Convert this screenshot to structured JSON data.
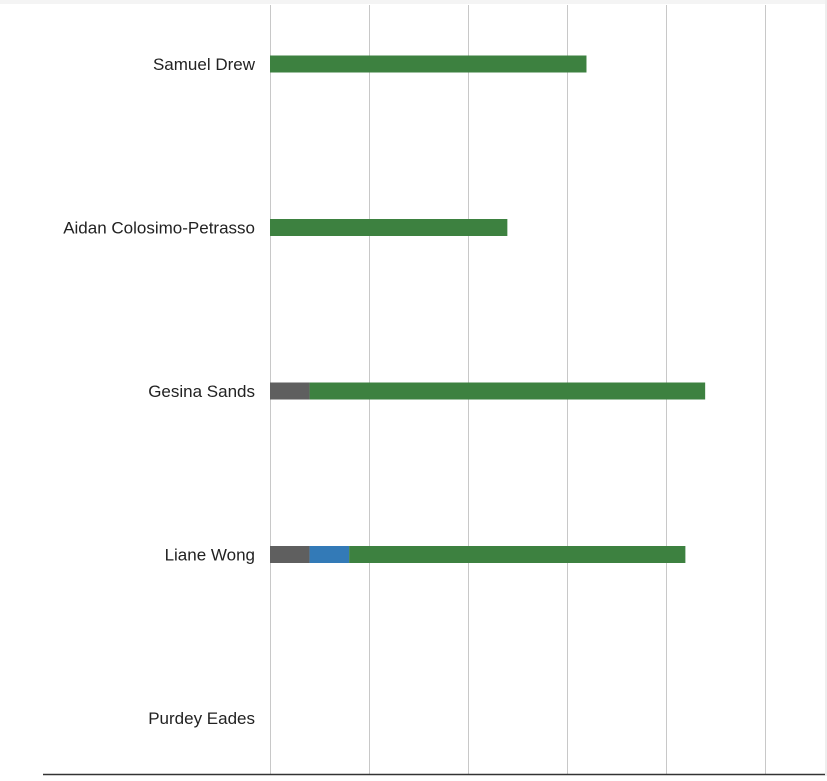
{
  "chart_data": {
    "type": "bar",
    "orientation": "horizontal",
    "stacked": true,
    "categories": [
      "Samuel Drew",
      "Aidan Colosimo-Petrasso",
      "Gesina Sands",
      "Liane Wong",
      "Purdey Eades"
    ],
    "series": [
      {
        "color": "#5f5f5f",
        "values": [
          0,
          0,
          0.4,
          0.4,
          0
        ]
      },
      {
        "color": "#337ab7",
        "values": [
          0,
          0,
          0,
          0.4,
          0
        ]
      },
      {
        "color": "#3d8140",
        "values": [
          3.2,
          2.4,
          4.0,
          3.4,
          0
        ]
      }
    ],
    "xlim": [
      0,
      5.6
    ],
    "grid": true,
    "legend": "none",
    "colors": {
      "grid": "#c8c8c8",
      "axis": "#333333",
      "label": "#222222"
    }
  }
}
